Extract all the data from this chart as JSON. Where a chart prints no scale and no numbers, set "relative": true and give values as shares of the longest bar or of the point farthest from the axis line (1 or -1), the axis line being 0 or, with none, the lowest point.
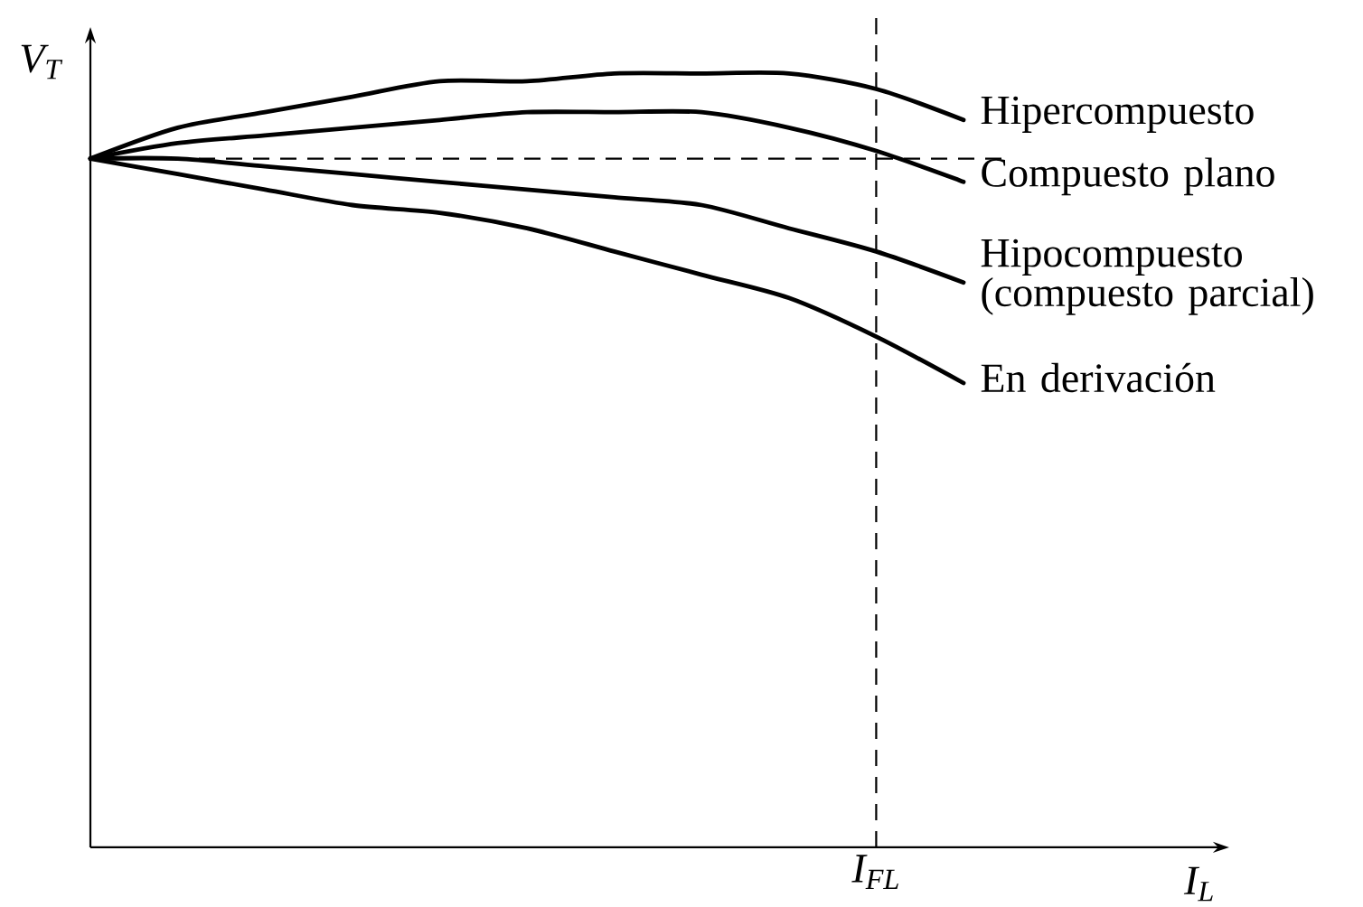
{
  "chart_data": {
    "type": "line",
    "relative": true,
    "xlabel": "I$_{L}$",
    "ylabel": "V$_{T}$",
    "categories": [
      null,
      null,
      null,
      null,
      null,
      null,
      null,
      null,
      null,
      null,
      null
    ],
    "series": [
      {
        "name": "Hipercompuesto",
        "color": "#000000",
        "values": [
          0.89,
          0.93,
          0.95,
          0.97,
          0.99,
          0.99,
          1.0,
          1.0,
          1.0,
          0.98,
          0.94
        ]
      },
      {
        "name": "Compuesto plano",
        "color": "#000000",
        "values": [
          0.89,
          0.91,
          0.92,
          0.93,
          0.94,
          0.95,
          0.95,
          0.95,
          0.93,
          0.9,
          0.86
        ]
      },
      {
        "name": "Hipocompuesto (compuesto parcial)",
        "color": "#000000",
        "values": [
          0.89,
          0.89,
          0.88,
          0.87,
          0.86,
          0.85,
          0.84,
          0.83,
          0.8,
          0.77,
          0.73
        ]
      },
      {
        "name": "En derivación",
        "color": "#000000",
        "values": [
          0.89,
          0.87,
          0.85,
          0.83,
          0.82,
          0.8,
          0.77,
          0.74,
          0.71,
          0.66,
          0.6
        ]
      }
    ],
    "ref_lines": [
      {
        "axis": "y",
        "value": 0.89,
        "color": "#000000",
        "line_style": "dashed"
      }
    ],
    "annotations": [
      "I$_{FL}$"
    ],
    "line_style": "solid"
  }
}
